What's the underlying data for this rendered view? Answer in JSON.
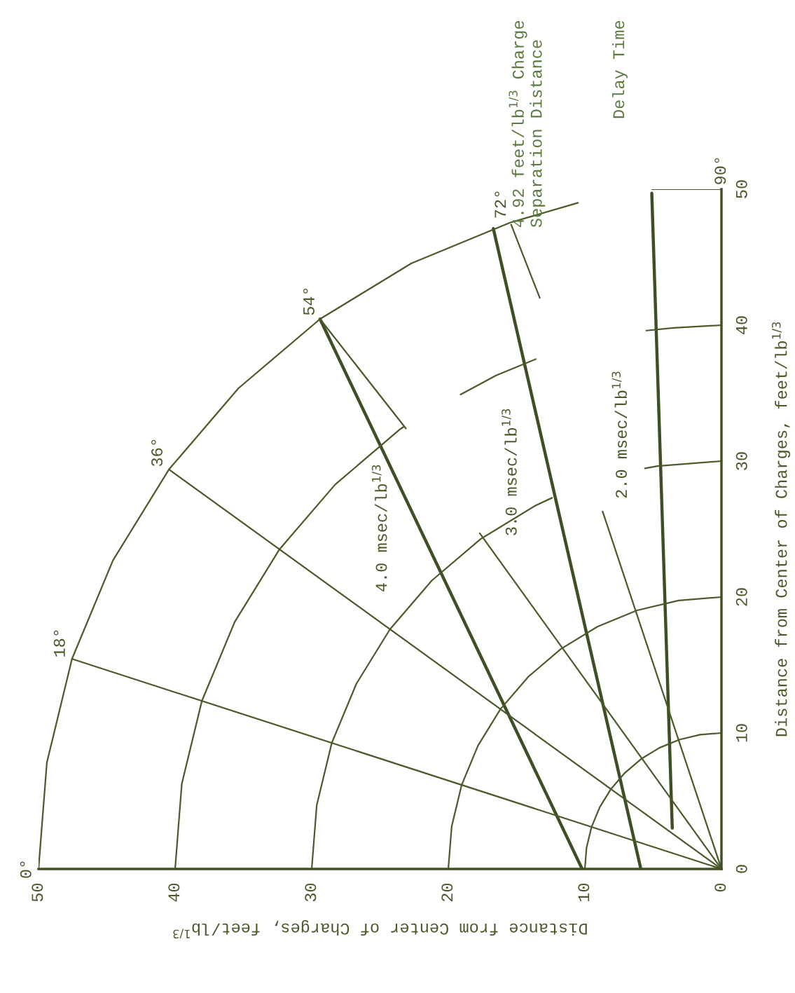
{
  "chart_data": {
    "type": "line",
    "xlabel": "Distance from Center of Charges, feet/lb$^{1/3}$",
    "ylabel": "Distance from Center of Charges, feet/lb$^{1/3}$",
    "xlim": [
      50,
      0
    ],
    "ylim": [
      0,
      50
    ],
    "xticks": [
      0,
      10,
      20,
      30,
      40,
      50
    ],
    "yticks": [
      0,
      10,
      20,
      30,
      40,
      50
    ],
    "grid": false,
    "series": [
      {
        "name": "4.0 msec/lb$^{1/3}$",
        "color": "#3f4f24",
        "values": [
          0,
          40.45
        ],
        "x": [
          10.2,
          29.39
        ]
      },
      {
        "name": "3.0 msec/lb$^{1/3}$",
        "color": "#3f4f24",
        "values": [
          0,
          47.1
        ],
        "x": [
          5.9,
          16.7
        ]
      },
      {
        "name": "2.0 msec/lb$^{1/3}$",
        "color": "#3f4f24",
        "values": [
          3.0,
          49.7
        ],
        "x": [
          3.6,
          5.1
        ]
      },
      {
        "color": "#4a5a2a",
        "values": [
          0,
          1.56,
          3.09,
          4.54,
          5.88,
          7.07,
          8.09,
          8.91,
          9.51,
          9.88,
          10
        ],
        "x": [
          10,
          9.88,
          9.51,
          8.91,
          8.09,
          7.07,
          5.88,
          4.54,
          3.09,
          1.56,
          0
        ]
      },
      {
        "color": "#4a5a2a",
        "values": [
          0,
          3.13,
          6.18,
          9.08,
          11.76,
          14.14,
          16.18,
          17.82,
          19.02,
          19.75,
          20
        ],
        "x": [
          20,
          19.75,
          19.02,
          17.82,
          16.18,
          14.14,
          11.76,
          9.08,
          6.18,
          3.13,
          0
        ]
      },
      {
        "color": "#4a5a2a",
        "values": [
          0,
          4.69,
          9.27,
          13.62,
          17.63,
          21.21,
          24.27,
          26.73,
          27.3
        ],
        "x": [
          30,
          29.63,
          28.53,
          26.73,
          24.27,
          21.21,
          17.63,
          13.62,
          12.4
        ]
      },
      {
        "color": "#4a5a2a",
        "values": [
          29.47,
          29.63,
          30
        ],
        "x": [
          5.6,
          4.69,
          0
        ]
      },
      {
        "color": "#4a5a2a",
        "values": [
          0,
          6.26,
          12.36,
          18.16,
          23.51,
          28.28,
          32.36,
          32.5
        ],
        "x": [
          40,
          39.51,
          38.04,
          35.64,
          32.36,
          28.28,
          23.51,
          23.3
        ]
      },
      {
        "color": "#4a5a2a",
        "values": [
          34.9,
          36.3,
          37.5
        ],
        "x": [
          19.1,
          16.5,
          13.6
        ]
      },
      {
        "color": "#4a5a2a",
        "values": [
          39.6,
          39.8,
          40
        ],
        "x": [
          5.5,
          3.5,
          0
        ]
      },
      {
        "color": "#4a5a2a",
        "values": [
          0,
          7.82,
          15.45,
          22.7,
          29.39,
          35.36,
          40.45,
          44.55,
          47.55,
          49.0
        ],
        "x": [
          50,
          49.39,
          47.55,
          44.55,
          40.45,
          35.36,
          29.39,
          22.7,
          15.45,
          10.5
        ]
      },
      {
        "color": "#4a5a2a",
        "values": [
          50,
          50
        ],
        "x": [
          5.1,
          0
        ]
      },
      {
        "color": "#4a5a2a",
        "values": [
          0,
          15.45
        ],
        "x": [
          0,
          47.55
        ]
      },
      {
        "color": "#4a5a2a",
        "values": [
          0,
          29.39
        ],
        "x": [
          0,
          40.45
        ]
      },
      {
        "color": "#4a5a2a",
        "values": [
          0,
          24.7
        ],
        "x": [
          0,
          17.7
        ]
      },
      {
        "color": "#4a5a2a",
        "values": [
          32.4,
          40.45
        ],
        "x": [
          23.1,
          29.39
        ]
      },
      {
        "color": "#4a5a2a",
        "values": [
          0,
          26.3
        ],
        "x": [
          0,
          8.7
        ]
      },
      {
        "color": "#4a5a2a",
        "values": [
          42.0,
          47.4
        ],
        "x": [
          13.3,
          15.4
        ]
      }
    ],
    "annotations": [
      {
        "text": "0°",
        "x": 50,
        "y": 0
      },
      {
        "text": "18°",
        "x": 47.55,
        "y": 15.45
      },
      {
        "text": "36°",
        "x": 40.45,
        "y": 29.39
      },
      {
        "text": "54°",
        "x": 29.39,
        "y": 40.45
      },
      {
        "text": "72°",
        "x": 15.45,
        "y": 47.55
      },
      {
        "text": "90°",
        "x": 0,
        "y": 50
      },
      "4.92 feet/lb$^{1/3}$ Charge\nSeparation Distance",
      "Delay Time"
    ]
  }
}
